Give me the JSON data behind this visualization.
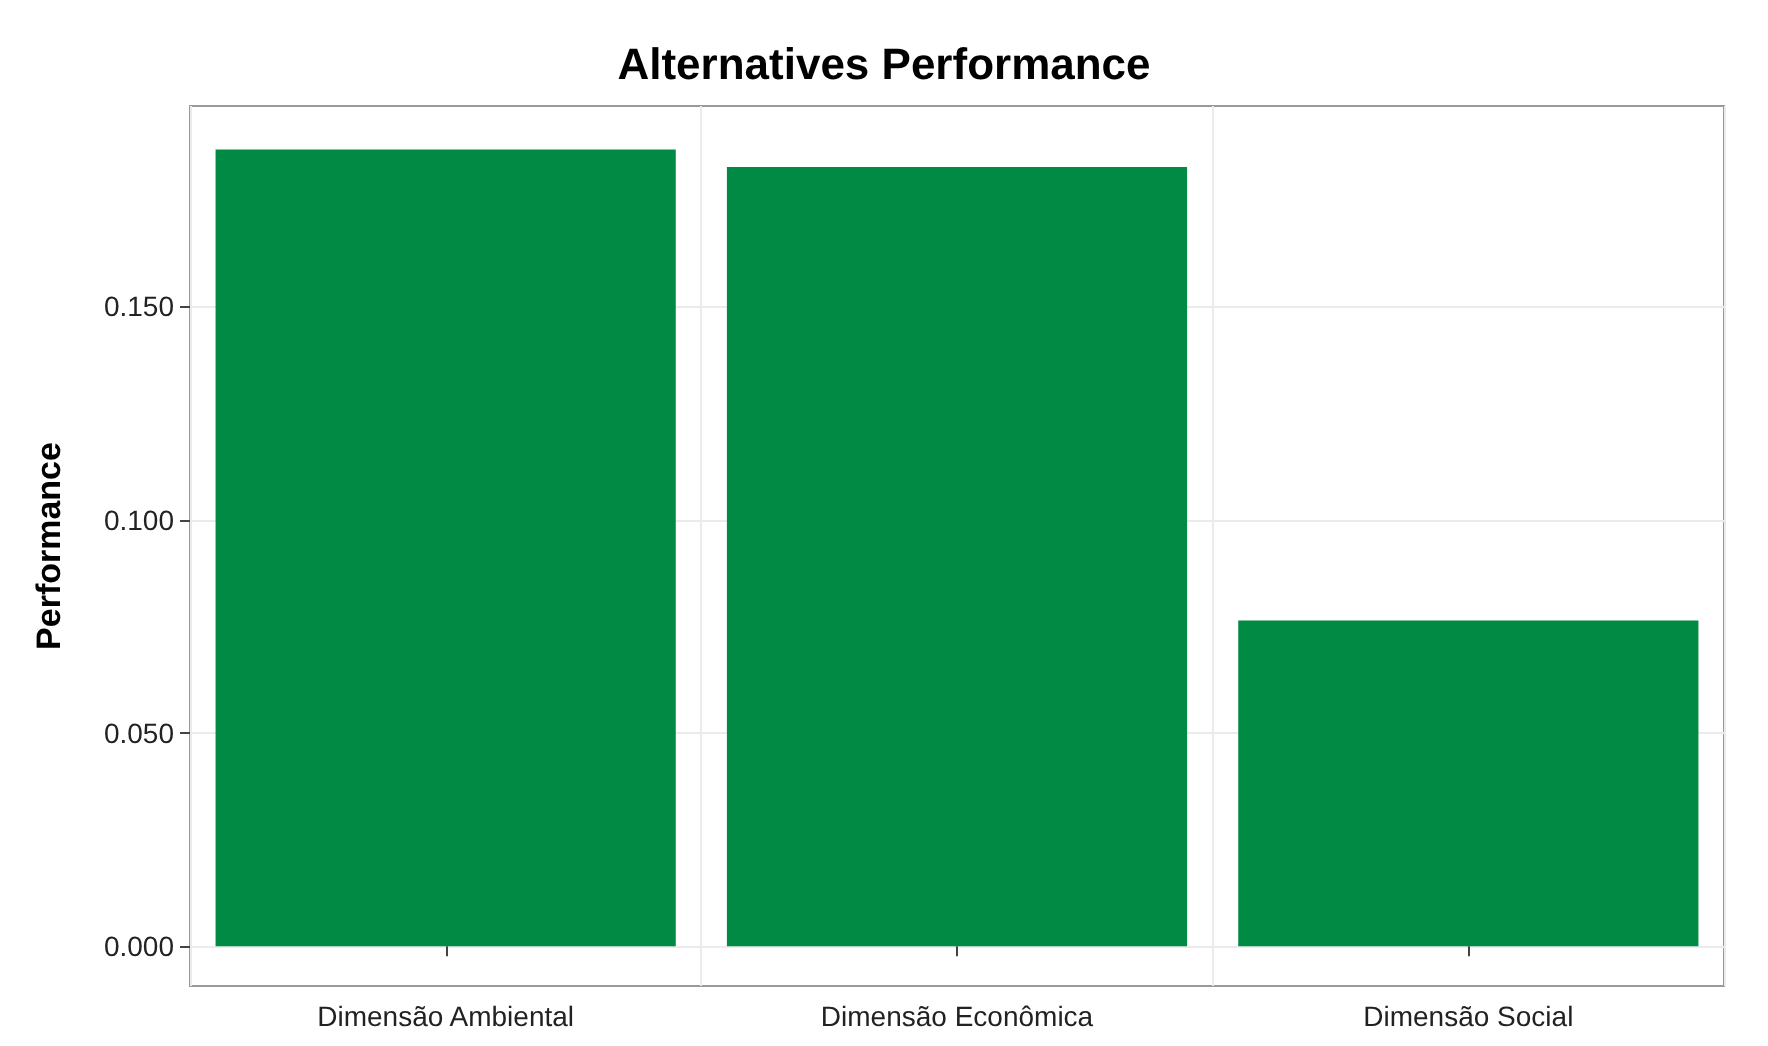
{
  "chart_data": {
    "type": "bar",
    "title": "Alternatives Performance",
    "ylabel": "Performance",
    "categories": [
      "Dimensão Ambiental",
      "Dimensão Econômica",
      "Dimensão Social"
    ],
    "values": [
      0.1868,
      0.1827,
      0.0764
    ],
    "color": "#008a44",
    "ylim": [
      -0.0093,
      0.197
    ],
    "yticks": [
      {
        "value": 0,
        "label": "0.000"
      },
      {
        "value": 0.05,
        "label": "0.050"
      },
      {
        "value": 0.1,
        "label": "0.100"
      },
      {
        "value": 0.15,
        "label": "0.150"
      }
    ],
    "grid": true
  }
}
